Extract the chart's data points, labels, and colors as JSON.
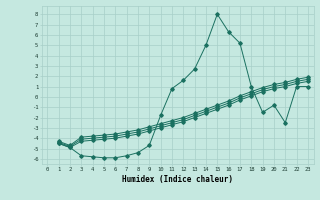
{
  "xlabel": "Humidex (Indice chaleur)",
  "bg_color": "#c5e8e0",
  "grid_color": "#a8cfc8",
  "line_color": "#1a7060",
  "xlim": [
    -0.5,
    23.5
  ],
  "ylim": [
    -6.5,
    8.8
  ],
  "xtick_vals": [
    0,
    1,
    2,
    3,
    4,
    5,
    6,
    7,
    8,
    9,
    10,
    11,
    12,
    13,
    14,
    15,
    16,
    17,
    18,
    19,
    20,
    21,
    22,
    23
  ],
  "xtick_labels": [
    "0",
    "1",
    "2",
    "3",
    "4",
    "5",
    "6",
    "7",
    "8",
    "9",
    "10",
    "11",
    "12",
    "13",
    "14",
    "15",
    "16",
    "17",
    "18",
    "19",
    "20",
    "21",
    "22",
    "23"
  ],
  "ytick_vals": [
    8,
    7,
    6,
    5,
    4,
    3,
    2,
    1,
    0,
    -1,
    -2,
    -3,
    -4,
    -5,
    -6
  ],
  "spike_x": [
    1,
    2,
    3,
    4,
    5,
    6,
    7,
    8,
    9,
    10,
    11,
    12,
    13,
    14,
    15,
    16,
    17,
    18,
    19,
    20,
    21,
    22,
    23
  ],
  "spike_y": [
    -4.5,
    -4.9,
    -5.7,
    -5.8,
    -5.9,
    -5.9,
    -5.7,
    -5.4,
    -4.7,
    -1.8,
    0.8,
    1.6,
    2.7,
    5.0,
    8.0,
    6.3,
    5.2,
    1.0,
    -1.5,
    -0.8,
    -2.5,
    1.0,
    1.0
  ],
  "line2_x": [
    1,
    2,
    3,
    4,
    5,
    6,
    7,
    8,
    9,
    10,
    11,
    12,
    13,
    14,
    15,
    16,
    17,
    18,
    19,
    20,
    21,
    22,
    23
  ],
  "line2_y": [
    -4.5,
    -4.9,
    -4.3,
    -4.2,
    -4.1,
    -4.0,
    -3.8,
    -3.6,
    -3.3,
    -3.0,
    -2.7,
    -2.4,
    -2.0,
    -1.6,
    -1.2,
    -0.8,
    -0.3,
    0.1,
    0.5,
    0.8,
    1.0,
    1.3,
    1.5
  ],
  "line3_x": [
    1,
    2,
    3,
    4,
    5,
    6,
    7,
    8,
    9,
    10,
    11,
    12,
    13,
    14,
    15,
    16,
    17,
    18,
    19,
    20,
    21,
    22,
    23
  ],
  "line3_y": [
    -4.4,
    -4.8,
    -4.1,
    -4.0,
    -3.9,
    -3.8,
    -3.6,
    -3.4,
    -3.1,
    -2.8,
    -2.5,
    -2.2,
    -1.8,
    -1.4,
    -1.0,
    -0.6,
    -0.1,
    0.3,
    0.7,
    1.0,
    1.2,
    1.5,
    1.7
  ],
  "line4_x": [
    1,
    2,
    3,
    4,
    5,
    6,
    7,
    8,
    9,
    10,
    11,
    12,
    13,
    14,
    15,
    16,
    17,
    18,
    19,
    20,
    21,
    22,
    23
  ],
  "line4_y": [
    -4.3,
    -4.7,
    -3.9,
    -3.8,
    -3.7,
    -3.6,
    -3.4,
    -3.2,
    -2.9,
    -2.6,
    -2.3,
    -2.0,
    -1.6,
    -1.2,
    -0.8,
    -0.4,
    0.1,
    0.5,
    0.9,
    1.2,
    1.4,
    1.7,
    1.9
  ]
}
